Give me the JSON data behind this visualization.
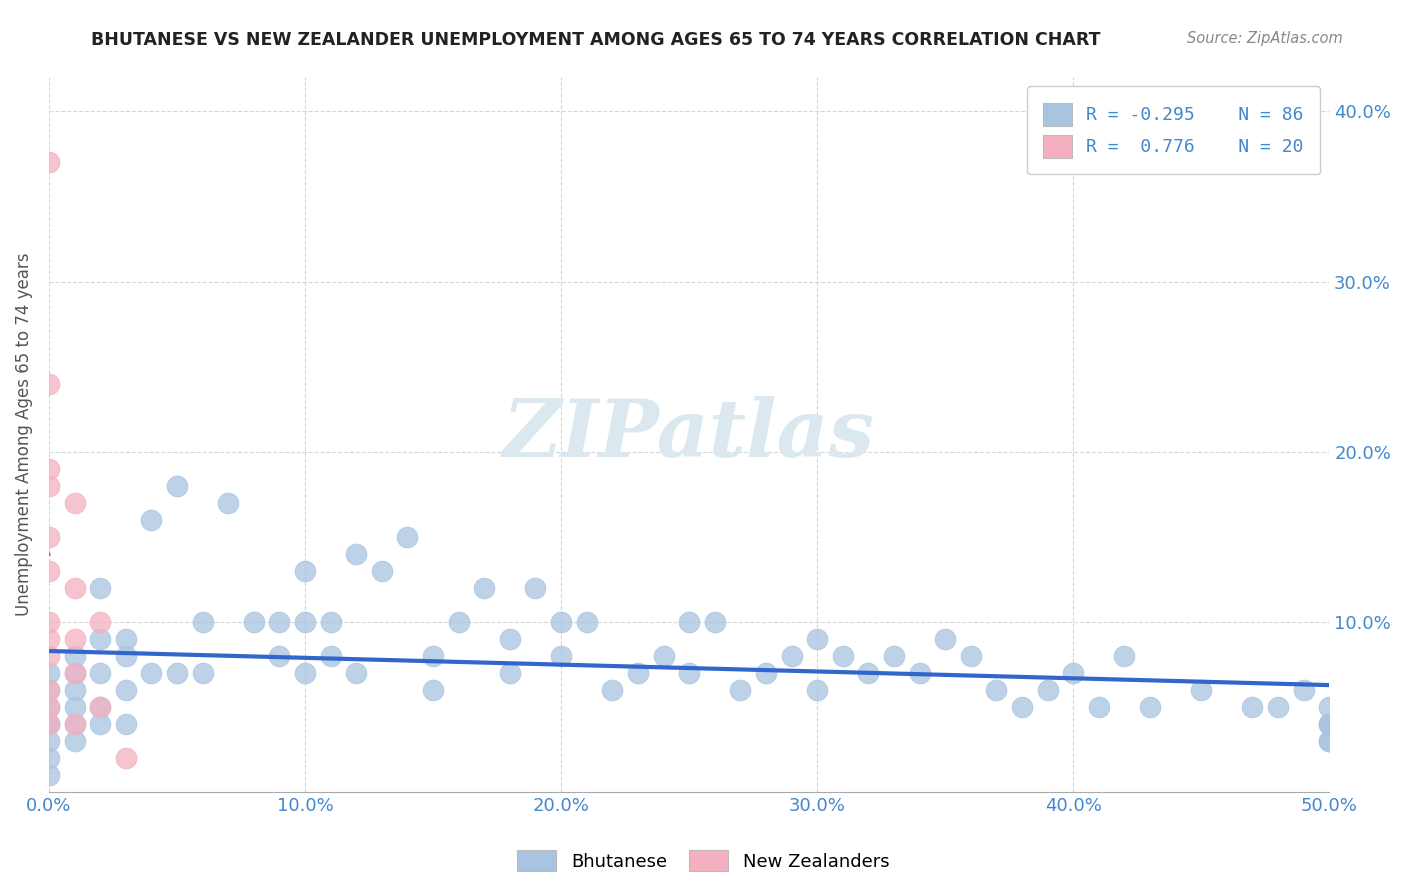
{
  "title": "BHUTANESE VS NEW ZEALANDER UNEMPLOYMENT AMONG AGES 65 TO 74 YEARS CORRELATION CHART",
  "source": "Source: ZipAtlas.com",
  "ylabel": "Unemployment Among Ages 65 to 74 years",
  "xlim": [
    0.0,
    0.5
  ],
  "ylim": [
    0.0,
    0.42
  ],
  "xticks": [
    0.0,
    0.1,
    0.2,
    0.3,
    0.4,
    0.5
  ],
  "xticklabels": [
    "0.0%",
    "10.0%",
    "20.0%",
    "30.0%",
    "40.0%",
    "50.0%"
  ],
  "yticks": [
    0.1,
    0.2,
    0.3,
    0.4
  ],
  "yticklabels": [
    "10.0%",
    "20.0%",
    "30.0%",
    "40.0%"
  ],
  "blue_r": -0.295,
  "blue_n": 86,
  "pink_r": 0.776,
  "pink_n": 20,
  "blue_color": "#a8c4e0",
  "pink_color": "#f4b0c0",
  "blue_line_color": "#3366cc",
  "pink_line_color": "#e05080",
  "tick_color": "#4488cc",
  "watermark_color": "#dce8f0",
  "background_color": "#ffffff",
  "blue_scatter_x": [
    0.0,
    0.0,
    0.0,
    0.0,
    0.0,
    0.0,
    0.0,
    0.0,
    0.01,
    0.01,
    0.01,
    0.01,
    0.01,
    0.01,
    0.02,
    0.02,
    0.02,
    0.02,
    0.02,
    0.03,
    0.03,
    0.03,
    0.03,
    0.04,
    0.04,
    0.05,
    0.05,
    0.06,
    0.06,
    0.07,
    0.08,
    0.09,
    0.09,
    0.1,
    0.1,
    0.1,
    0.11,
    0.11,
    0.12,
    0.12,
    0.13,
    0.14,
    0.15,
    0.15,
    0.16,
    0.17,
    0.18,
    0.18,
    0.19,
    0.2,
    0.2,
    0.21,
    0.22,
    0.23,
    0.24,
    0.25,
    0.25,
    0.26,
    0.27,
    0.28,
    0.29,
    0.3,
    0.3,
    0.31,
    0.32,
    0.33,
    0.34,
    0.35,
    0.36,
    0.37,
    0.38,
    0.39,
    0.4,
    0.41,
    0.42,
    0.43,
    0.45,
    0.47,
    0.48,
    0.49,
    0.5,
    0.5,
    0.5,
    0.5,
    0.5,
    0.5
  ],
  "blue_scatter_y": [
    0.07,
    0.06,
    0.05,
    0.04,
    0.04,
    0.03,
    0.02,
    0.01,
    0.08,
    0.07,
    0.06,
    0.05,
    0.04,
    0.03,
    0.12,
    0.09,
    0.07,
    0.05,
    0.04,
    0.09,
    0.08,
    0.06,
    0.04,
    0.16,
    0.07,
    0.18,
    0.07,
    0.1,
    0.07,
    0.17,
    0.1,
    0.1,
    0.08,
    0.13,
    0.1,
    0.07,
    0.1,
    0.08,
    0.14,
    0.07,
    0.13,
    0.15,
    0.08,
    0.06,
    0.1,
    0.12,
    0.09,
    0.07,
    0.12,
    0.1,
    0.08,
    0.1,
    0.06,
    0.07,
    0.08,
    0.1,
    0.07,
    0.1,
    0.06,
    0.07,
    0.08,
    0.09,
    0.06,
    0.08,
    0.07,
    0.08,
    0.07,
    0.09,
    0.08,
    0.06,
    0.05,
    0.06,
    0.07,
    0.05,
    0.08,
    0.05,
    0.06,
    0.05,
    0.05,
    0.06,
    0.05,
    0.04,
    0.04,
    0.04,
    0.03,
    0.03
  ],
  "pink_scatter_x": [
    0.0,
    0.0,
    0.0,
    0.0,
    0.0,
    0.0,
    0.0,
    0.0,
    0.0,
    0.0,
    0.0,
    0.0,
    0.01,
    0.01,
    0.01,
    0.01,
    0.01,
    0.02,
    0.02,
    0.03
  ],
  "pink_scatter_y": [
    0.37,
    0.24,
    0.19,
    0.18,
    0.15,
    0.13,
    0.1,
    0.09,
    0.08,
    0.06,
    0.05,
    0.04,
    0.17,
    0.12,
    0.09,
    0.07,
    0.04,
    0.1,
    0.05,
    0.02
  ]
}
